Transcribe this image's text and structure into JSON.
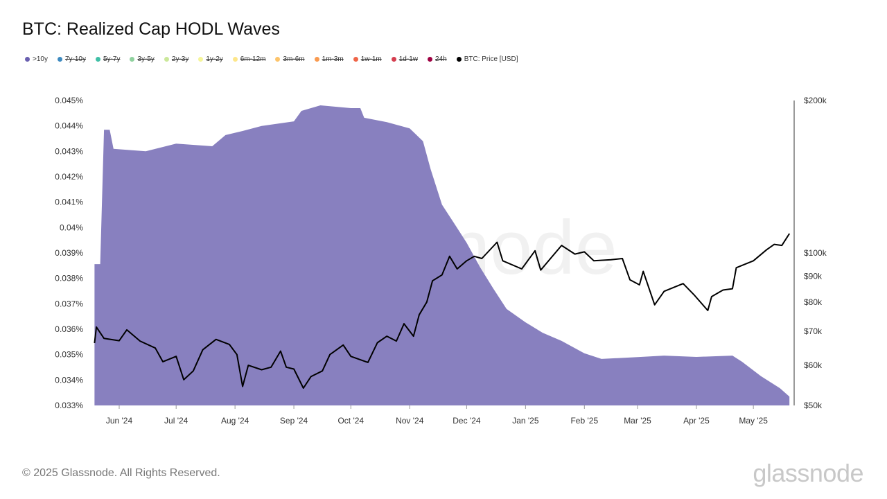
{
  "title": "BTC: Realized Cap HODL Waves",
  "legend": [
    {
      "label": ">10y",
      "color": "#6a5fb0",
      "active": true
    },
    {
      "label": "7y-10y",
      "color": "#3d8ac0",
      "active": false
    },
    {
      "label": "5y-7y",
      "color": "#3fbfa6",
      "active": false
    },
    {
      "label": "3y-5y",
      "color": "#8fd19e",
      "active": false
    },
    {
      "label": "2y-3y",
      "color": "#cbe89a",
      "active": false
    },
    {
      "label": "1y-2y",
      "color": "#f5f59a",
      "active": false
    },
    {
      "label": "6m-12m",
      "color": "#fde68a",
      "active": false
    },
    {
      "label": "3m-6m",
      "color": "#fdc46b",
      "active": false
    },
    {
      "label": "1m-3m",
      "color": "#f99a4f",
      "active": false
    },
    {
      "label": "1w-1m",
      "color": "#ef6548",
      "active": false
    },
    {
      "label": "1d-1w",
      "color": "#d53e4f",
      "active": false
    },
    {
      "label": "24h",
      "color": "#9e0142",
      "active": false
    },
    {
      "label": "BTC: Price [USD]",
      "color": "#000000",
      "active": true
    }
  ],
  "watermark": "glassnode",
  "footer": "© 2025 Glassnode. All Rights Reserved.",
  "logo": "glassnode",
  "chart_data": {
    "type": "area",
    "x_range": [
      "2024-05-19",
      "2025-05-20"
    ],
    "x_ticks": [
      "Jun '24",
      "Jul '24",
      "Aug '24",
      "Sep '24",
      "Oct '24",
      "Nov '24",
      "Dec '24",
      "Jan '25",
      "Feb '25",
      "Mar '25",
      "Apr '25",
      "May '25"
    ],
    "x_tick_dates": [
      "2024-06-01",
      "2024-07-01",
      "2024-08-01",
      "2024-09-01",
      "2024-10-01",
      "2024-11-01",
      "2024-12-01",
      "2025-01-01",
      "2025-02-01",
      "2025-03-01",
      "2025-04-01",
      "2025-05-01"
    ],
    "y_left": {
      "range": [
        0.033,
        0.045
      ],
      "ticks": [
        "0.033%",
        "0.034%",
        "0.035%",
        "0.036%",
        "0.037%",
        "0.038%",
        "0.039%",
        "0.04%",
        "0.041%",
        "0.042%",
        "0.043%",
        "0.044%",
        "0.045%"
      ],
      "unit": "%"
    },
    "y_right": {
      "scale": "log",
      "range": [
        50000,
        200000
      ],
      "ticks": [
        {
          "v": 50000,
          "l": "$50k"
        },
        {
          "v": 60000,
          "l": "$60k"
        },
        {
          "v": 70000,
          "l": "$70k"
        },
        {
          "v": 80000,
          "l": "$80k"
        },
        {
          "v": 90000,
          "l": "$90k"
        },
        {
          "v": 100000,
          "l": "$100k"
        },
        {
          "v": 200000,
          "l": "$200k"
        }
      ]
    },
    "grid": false,
    "legend_position": "top-left",
    "series": [
      {
        "name": ">10y",
        "type": "area",
        "color": "#8880bf",
        "axis": "left",
        "points": [
          [
            "2024-05-19",
            0.03856
          ],
          [
            "2024-05-22",
            0.03856
          ],
          [
            "2024-05-24",
            0.04385
          ],
          [
            "2024-05-27",
            0.04385
          ],
          [
            "2024-05-29",
            0.0431
          ],
          [
            "2024-06-15",
            0.043
          ],
          [
            "2024-07-01",
            0.0433
          ],
          [
            "2024-07-20",
            0.0432
          ],
          [
            "2024-07-27",
            0.04364
          ],
          [
            "2024-08-05",
            0.0438
          ],
          [
            "2024-08-15",
            0.044
          ],
          [
            "2024-09-01",
            0.04418
          ],
          [
            "2024-09-05",
            0.04459
          ],
          [
            "2024-09-15",
            0.04481
          ],
          [
            "2024-10-01",
            0.0447
          ],
          [
            "2024-10-06",
            0.0447
          ],
          [
            "2024-10-08",
            0.04432
          ],
          [
            "2024-10-20",
            0.04415
          ],
          [
            "2024-11-01",
            0.0439
          ],
          [
            "2024-11-08",
            0.0434
          ],
          [
            "2024-11-12",
            0.0423
          ],
          [
            "2024-11-18",
            0.0409
          ],
          [
            "2024-11-25",
            0.0401
          ],
          [
            "2024-12-01",
            0.0394
          ],
          [
            "2024-12-08",
            0.03845
          ],
          [
            "2024-12-15",
            0.0376
          ],
          [
            "2024-12-22",
            0.0368
          ],
          [
            "2025-01-01",
            0.03627
          ],
          [
            "2025-01-10",
            0.03586
          ],
          [
            "2025-01-20",
            0.03554
          ],
          [
            "2025-02-01",
            0.03505
          ],
          [
            "2025-02-10",
            0.03483
          ],
          [
            "2025-03-01",
            0.0349
          ],
          [
            "2025-03-15",
            0.03496
          ],
          [
            "2025-04-01",
            0.03491
          ],
          [
            "2025-04-20",
            0.03496
          ],
          [
            "2025-04-25",
            0.03472
          ],
          [
            "2025-05-05",
            0.03415
          ],
          [
            "2025-05-15",
            0.03368
          ],
          [
            "2025-05-20",
            0.03335
          ]
        ]
      },
      {
        "name": "BTC: Price [USD]",
        "type": "line",
        "color": "#000000",
        "axis": "right",
        "points": [
          [
            "2024-05-19",
            66400
          ],
          [
            "2024-05-20",
            71400
          ],
          [
            "2024-05-24",
            67800
          ],
          [
            "2024-06-01",
            67100
          ],
          [
            "2024-06-05",
            70500
          ],
          [
            "2024-06-12",
            67000
          ],
          [
            "2024-06-20",
            64900
          ],
          [
            "2024-06-24",
            61000
          ],
          [
            "2024-07-01",
            62500
          ],
          [
            "2024-07-05",
            56200
          ],
          [
            "2024-07-10",
            58500
          ],
          [
            "2024-07-15",
            64400
          ],
          [
            "2024-07-22",
            67500
          ],
          [
            "2024-07-29",
            66000
          ],
          [
            "2024-08-02",
            63000
          ],
          [
            "2024-08-05",
            54500
          ],
          [
            "2024-08-08",
            60000
          ],
          [
            "2024-08-15",
            58800
          ],
          [
            "2024-08-20",
            59500
          ],
          [
            "2024-08-25",
            64000
          ],
          [
            "2024-08-28",
            59500
          ],
          [
            "2024-09-01",
            59000
          ],
          [
            "2024-09-06",
            54100
          ],
          [
            "2024-09-10",
            57000
          ],
          [
            "2024-09-16",
            58500
          ],
          [
            "2024-09-20",
            63000
          ],
          [
            "2024-09-27",
            65800
          ],
          [
            "2024-10-01",
            62500
          ],
          [
            "2024-10-10",
            60800
          ],
          [
            "2024-10-15",
            66500
          ],
          [
            "2024-10-20",
            68500
          ],
          [
            "2024-10-25",
            67000
          ],
          [
            "2024-10-29",
            72500
          ],
          [
            "2024-11-03",
            68500
          ],
          [
            "2024-11-06",
            75500
          ],
          [
            "2024-11-10",
            80000
          ],
          [
            "2024-11-13",
            88100
          ],
          [
            "2024-11-18",
            90500
          ],
          [
            "2024-11-22",
            98500
          ],
          [
            "2024-11-26",
            93000
          ],
          [
            "2024-12-01",
            96500
          ],
          [
            "2024-12-05",
            98500
          ],
          [
            "2024-12-09",
            97500
          ],
          [
            "2024-12-17",
            105000
          ],
          [
            "2024-12-20",
            96500
          ],
          [
            "2024-12-30",
            93000
          ],
          [
            "2025-01-06",
            101000
          ],
          [
            "2025-01-09",
            92500
          ],
          [
            "2025-01-20",
            103500
          ],
          [
            "2025-01-27",
            99500
          ],
          [
            "2025-02-01",
            100500
          ],
          [
            "2025-02-06",
            96500
          ],
          [
            "2025-02-15",
            97000
          ],
          [
            "2025-02-21",
            97500
          ],
          [
            "2025-02-25",
            88500
          ],
          [
            "2025-03-02",
            86500
          ],
          [
            "2025-03-04",
            92000
          ],
          [
            "2025-03-10",
            79000
          ],
          [
            "2025-03-15",
            84000
          ],
          [
            "2025-03-25",
            87000
          ],
          [
            "2025-03-31",
            82500
          ],
          [
            "2025-04-07",
            77000
          ],
          [
            "2025-04-09",
            82000
          ],
          [
            "2025-04-15",
            84500
          ],
          [
            "2025-04-20",
            85000
          ],
          [
            "2025-04-22",
            93500
          ],
          [
            "2025-05-01",
            96500
          ],
          [
            "2025-05-08",
            101500
          ],
          [
            "2025-05-12",
            104000
          ],
          [
            "2025-05-16",
            103500
          ],
          [
            "2025-05-20",
            109200
          ]
        ]
      }
    ]
  }
}
